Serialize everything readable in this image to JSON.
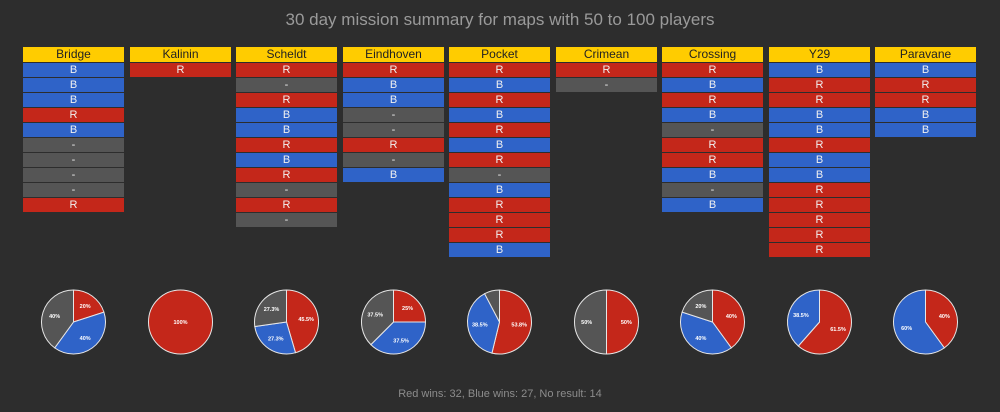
{
  "title": "30 day mission summary for maps with 50 to 100 players",
  "footer": "Red wins: 32, Blue wins: 27, No result: 14",
  "colors": {
    "R": "#c4271a",
    "B": "#2f63c8",
    "N": "#555555",
    "header": "#ffcc00"
  },
  "chart_data": {
    "type": "table",
    "maps": [
      {
        "name": "Bridge",
        "results": [
          "B",
          "B",
          "B",
          "R",
          "B",
          "-",
          "-",
          "-",
          "-",
          "R"
        ],
        "pie": [
          {
            "label": "20%",
            "value": 20,
            "c": "R"
          },
          {
            "label": "40%",
            "value": 40,
            "c": "B"
          },
          {
            "label": "40%",
            "value": 40,
            "c": "N"
          }
        ]
      },
      {
        "name": "Kalinin",
        "results": [
          "R"
        ],
        "pie": [
          {
            "label": "100%",
            "value": 100,
            "c": "R"
          }
        ]
      },
      {
        "name": "Scheldt",
        "results": [
          "R",
          "-",
          "R",
          "B",
          "B",
          "R",
          "B",
          "R",
          "-",
          "R",
          "-"
        ],
        "pie": [
          {
            "label": "45.5%",
            "value": 45.5,
            "c": "R"
          },
          {
            "label": "27.3%",
            "value": 27.3,
            "c": "B"
          },
          {
            "label": "27.3%",
            "value": 27.3,
            "c": "N"
          }
        ]
      },
      {
        "name": "Eindhoven",
        "results": [
          "R",
          "B",
          "B",
          "-",
          "-",
          "R",
          "-",
          "B"
        ],
        "pie": [
          {
            "label": "25%",
            "value": 25,
            "c": "R"
          },
          {
            "label": "37.5%",
            "value": 37.5,
            "c": "B"
          },
          {
            "label": "37.5%",
            "value": 37.5,
            "c": "N"
          }
        ]
      },
      {
        "name": "Pocket",
        "results": [
          "R",
          "B",
          "R",
          "B",
          "R",
          "B",
          "R",
          "-",
          "B",
          "R",
          "R",
          "R",
          "B"
        ],
        "pie": [
          {
            "label": "53.8%",
            "value": 53.8,
            "c": "R"
          },
          {
            "label": "38.5%",
            "value": 38.5,
            "c": "B"
          },
          {
            "label": "",
            "value": 7.7,
            "c": "N"
          }
        ]
      },
      {
        "name": "Crimean",
        "results": [
          "R",
          "-"
        ],
        "pie": [
          {
            "label": "50%",
            "value": 50,
            "c": "R"
          },
          {
            "label": "50%",
            "value": 50,
            "c": "N"
          }
        ]
      },
      {
        "name": "Crossing",
        "results": [
          "R",
          "B",
          "R",
          "B",
          "-",
          "R",
          "R",
          "B",
          "-",
          "B"
        ],
        "pie": [
          {
            "label": "40%",
            "value": 40,
            "c": "R"
          },
          {
            "label": "40%",
            "value": 40,
            "c": "B"
          },
          {
            "label": "20%",
            "value": 20,
            "c": "N"
          }
        ]
      },
      {
        "name": "Y29",
        "results": [
          "B",
          "R",
          "R",
          "B",
          "B",
          "R",
          "B",
          "B",
          "R",
          "R",
          "R",
          "R",
          "R"
        ],
        "pie": [
          {
            "label": "61.5%",
            "value": 61.5,
            "c": "R"
          },
          {
            "label": "38.5%",
            "value": 38.5,
            "c": "B"
          }
        ]
      },
      {
        "name": "Paravane",
        "results": [
          "B",
          "R",
          "R",
          "B",
          "B"
        ],
        "pie": [
          {
            "label": "40%",
            "value": 40,
            "c": "R"
          },
          {
            "label": "60%",
            "value": 60,
            "c": "B"
          }
        ]
      }
    ]
  }
}
